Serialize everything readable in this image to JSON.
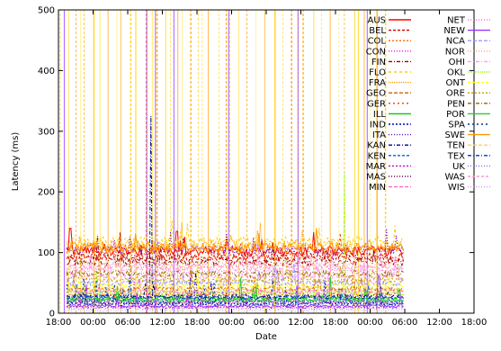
{
  "chart_data": {
    "type": "line",
    "title": "",
    "xlabel": "Date",
    "ylabel": "Latency (ms)",
    "x_ticks": [
      "18:00",
      "00:00",
      "06:00",
      "12:00",
      "18:00",
      "00:00",
      "06:00",
      "12:00",
      "18:00",
      "00:00",
      "06:00",
      "12:00",
      "18:00"
    ],
    "x_range_hours": [
      0,
      72
    ],
    "ylim": [
      0,
      500
    ],
    "y_ticks": [
      0,
      100,
      200,
      300,
      400,
      500
    ],
    "grid": false,
    "legend_placement": "top-right",
    "series": [
      {
        "name": "AUS",
        "color": "#ff0000",
        "dash": "",
        "baseline": 103,
        "spikes": [
          [
            2.0,
            140
          ],
          [
            20.5,
            135
          ]
        ]
      },
      {
        "name": "BEL",
        "color": "#cc0000",
        "dash": "3,2",
        "baseline": 92,
        "spikes": []
      },
      {
        "name": "COL",
        "color": "#ff6600",
        "dash": "2,2",
        "baseline": 30,
        "spikes": []
      },
      {
        "name": "CON",
        "color": "#ff00ff",
        "dash": "1,2",
        "baseline": 20,
        "spikes": []
      },
      {
        "name": "FIN",
        "color": "#990000",
        "dash": "4,2,1,2",
        "baseline": 85,
        "spikes": []
      },
      {
        "name": "FLO",
        "color": "#ffcc00",
        "dash": "3,3",
        "baseline": 118,
        "spikes": []
      },
      {
        "name": "FRA",
        "color": "#ff9900",
        "dash": "1,1",
        "baseline": 112,
        "spikes": []
      },
      {
        "name": "GEO",
        "color": "#cc6600",
        "dash": "4,2",
        "baseline": 40,
        "spikes": []
      },
      {
        "name": "GER",
        "color": "#ff3300",
        "dash": "2,3",
        "baseline": 95,
        "spikes": []
      },
      {
        "name": "ILL",
        "color": "#00cc00",
        "dash": "",
        "baseline": 25,
        "spikes": []
      },
      {
        "name": "IND",
        "color": "#0000cc",
        "dash": "2,2",
        "baseline": 15,
        "spikes": []
      },
      {
        "name": "ITA",
        "color": "#6600cc",
        "dash": "1,2",
        "baseline": 104,
        "spikes": []
      },
      {
        "name": "KAN",
        "color": "#000099",
        "dash": "4,2,1,2",
        "baseline": 28,
        "spikes": [
          [
            16.0,
            325
          ]
        ]
      },
      {
        "name": "KEN",
        "color": "#0066cc",
        "dash": "3,2",
        "baseline": 20,
        "spikes": []
      },
      {
        "name": "MAR",
        "color": "#cc00cc",
        "dash": "2,2",
        "baseline": 10,
        "spikes": []
      },
      {
        "name": "MAS",
        "color": "#660066",
        "dash": "1,2",
        "baseline": 18,
        "spikes": []
      },
      {
        "name": "MIN",
        "color": "#ff66cc",
        "dash": "4,2",
        "baseline": 35,
        "spikes": []
      },
      {
        "name": "NET",
        "color": "#ff66ff",
        "dash": "1,2",
        "baseline": 70,
        "spikes": []
      },
      {
        "name": "NEW",
        "color": "#9933ff",
        "dash": "",
        "baseline": 12,
        "spikes": [
          [
            0.7,
            280
          ],
          [
            55.5,
            60
          ]
        ]
      },
      {
        "name": "NCA",
        "color": "#9999ff",
        "dash": "4,2",
        "baseline": 50,
        "spikes": []
      },
      {
        "name": "NOR",
        "color": "#ff9999",
        "dash": "1,2",
        "baseline": 80,
        "spikes": []
      },
      {
        "name": "OHI",
        "color": "#ff99ff",
        "dash": "4,2,1,2",
        "baseline": 60,
        "spikes": []
      },
      {
        "name": "OKL",
        "color": "#99ff00",
        "dash": "1,1",
        "baseline": 33,
        "spikes": [
          [
            49.5,
            235
          ]
        ]
      },
      {
        "name": "ONT",
        "color": "#ffff00",
        "dash": "3,2",
        "baseline": 45,
        "spikes": []
      },
      {
        "name": "ORE",
        "color": "#cc9900",
        "dash": "2,2",
        "baseline": 55,
        "spikes": []
      },
      {
        "name": "PEN",
        "color": "#996600",
        "dash": "4,2,1,2",
        "baseline": 65,
        "spikes": []
      },
      {
        "name": "POR",
        "color": "#33cc33",
        "dash": "",
        "baseline": 22,
        "spikes": []
      },
      {
        "name": "SPA",
        "color": "#003399",
        "dash": "2,3",
        "baseline": 16,
        "spikes": [
          [
            6.5,
            55
          ]
        ]
      },
      {
        "name": "SWE",
        "color": "#ff9900",
        "dash": "",
        "baseline": 108,
        "spikes": []
      },
      {
        "name": "TEN",
        "color": "#ffcc66",
        "dash": "4,2",
        "baseline": 38,
        "spikes": []
      },
      {
        "name": "TEX",
        "color": "#0033cc",
        "dash": "4,2,1,2",
        "baseline": 26,
        "spikes": [
          [
            59.0,
            30
          ]
        ]
      },
      {
        "name": "UK",
        "color": "#9966ff",
        "dash": "1,2",
        "baseline": 8,
        "spikes": [
          [
            65.0,
            85
          ]
        ]
      },
      {
        "name": "WAS",
        "color": "#ff99cc",
        "dash": "3,2",
        "baseline": 75,
        "spikes": []
      },
      {
        "name": "WIS",
        "color": "#cc99ff",
        "dash": "1,2",
        "baseline": 5,
        "spikes": []
      }
    ]
  }
}
